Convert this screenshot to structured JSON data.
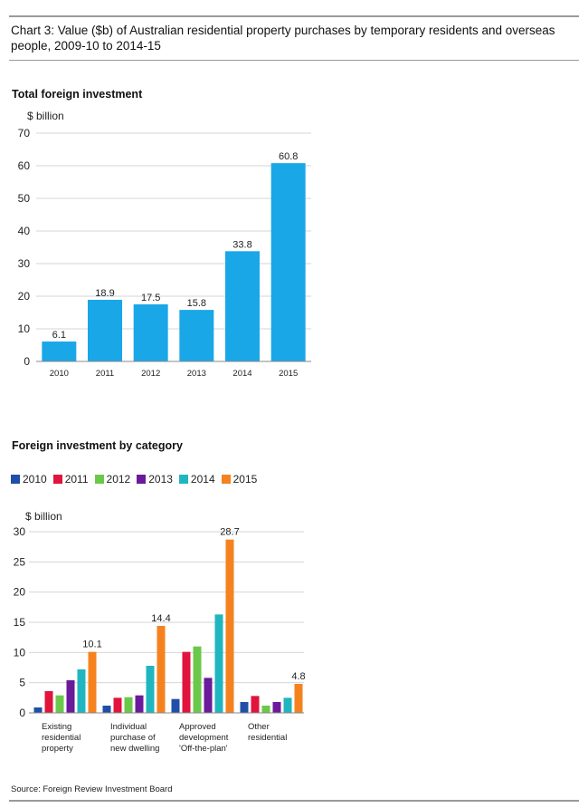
{
  "title": "Chart 3: Value ($b) of Australian residential property purchases by temporary residents and overseas people, 2009-10 to 2014-15",
  "source": "Source: Foreign Review Investment Board",
  "chart_data": [
    {
      "type": "bar",
      "title": "Total foreign investment",
      "ylabel": "$ billion",
      "ylim": [
        0,
        70
      ],
      "yticks": [
        0,
        10,
        20,
        30,
        40,
        50,
        60,
        70
      ],
      "grid": true,
      "color": "#1aa7e8",
      "categories": [
        "2010",
        "2011",
        "2012",
        "2013",
        "2014",
        "2015"
      ],
      "values": [
        6.1,
        18.9,
        17.5,
        15.8,
        33.8,
        60.8
      ],
      "data_labels": [
        "6.1",
        "18.9",
        "17.5",
        "15.8",
        "33.8",
        "60.8"
      ]
    },
    {
      "type": "bar",
      "title": "Foreign investment by category",
      "ylabel": "$ billion",
      "ylim": [
        0,
        30
      ],
      "yticks": [
        0,
        5,
        10,
        15,
        20,
        25,
        30
      ],
      "grid": true,
      "legend_position": "top",
      "categories": [
        [
          "Existing",
          "residential",
          "property"
        ],
        [
          "Individual",
          "purchase of",
          "new dwelling"
        ],
        [
          "Approved",
          "development",
          "'Off-the-plan'"
        ],
        [
          "Other",
          "residential"
        ]
      ],
      "series": [
        {
          "name": "2010",
          "color": "#1f4fa8",
          "values": [
            0.9,
            1.2,
            2.3,
            1.8
          ]
        },
        {
          "name": "2011",
          "color": "#e0143c",
          "values": [
            3.6,
            2.5,
            10.1,
            2.8
          ]
        },
        {
          "name": "2012",
          "color": "#6ac94a",
          "values": [
            2.9,
            2.6,
            11.0,
            1.2
          ]
        },
        {
          "name": "2013",
          "color": "#6a1a9a",
          "values": [
            5.4,
            2.9,
            5.8,
            1.8
          ]
        },
        {
          "name": "2014",
          "color": "#20b6c0",
          "values": [
            7.2,
            7.8,
            16.3,
            2.5
          ]
        },
        {
          "name": "2015",
          "color": "#f5821f",
          "values": [
            10.1,
            14.4,
            28.7,
            4.8
          ]
        }
      ],
      "data_labels": [
        "10.1",
        "14.4",
        "28.7",
        "4.8"
      ]
    }
  ]
}
